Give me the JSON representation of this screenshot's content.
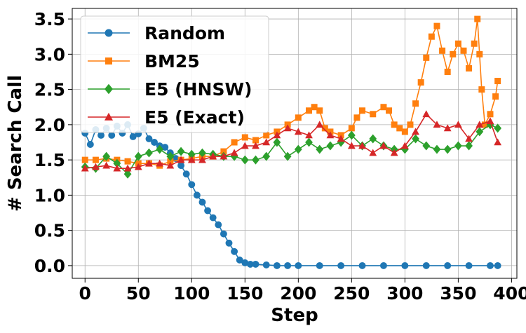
{
  "chart_data": {
    "type": "line",
    "title": "",
    "xlabel": "Step",
    "ylabel": "# Search Call",
    "xlim": [
      -12,
      405
    ],
    "ylim": [
      -0.18,
      3.65
    ],
    "xticks": [
      0,
      50,
      100,
      150,
      200,
      250,
      300,
      350,
      400
    ],
    "yticks": [
      0.0,
      0.5,
      1.0,
      1.5,
      2.0,
      2.5,
      3.0,
      3.5
    ],
    "xtick_labels": [
      "0",
      "50",
      "100",
      "150",
      "200",
      "250",
      "300",
      "350",
      "400"
    ],
    "ytick_labels": [
      "0.0",
      "0.5",
      "1.0",
      "1.5",
      "2.0",
      "2.5",
      "3.0",
      "3.5"
    ],
    "grid": true,
    "legend_position": "top-left",
    "series": [
      {
        "name": "Random",
        "color": "#1f77b4",
        "marker": "circle",
        "points": [
          [
            0,
            1.88
          ],
          [
            5,
            1.72
          ],
          [
            10,
            1.93
          ],
          [
            15,
            1.85
          ],
          [
            20,
            1.95
          ],
          [
            25,
            1.85
          ],
          [
            30,
            1.98
          ],
          [
            35,
            1.88
          ],
          [
            40,
            2.0
          ],
          [
            45,
            1.83
          ],
          [
            50,
            1.87
          ],
          [
            55,
            1.95
          ],
          [
            60,
            1.8
          ],
          [
            65,
            1.75
          ],
          [
            70,
            1.7
          ],
          [
            75,
            1.68
          ],
          [
            80,
            1.6
          ],
          [
            85,
            1.52
          ],
          [
            90,
            1.42
          ],
          [
            95,
            1.3
          ],
          [
            100,
            1.15
          ],
          [
            105,
            1.0
          ],
          [
            110,
            0.9
          ],
          [
            115,
            0.78
          ],
          [
            120,
            0.68
          ],
          [
            125,
            0.58
          ],
          [
            130,
            0.45
          ],
          [
            135,
            0.32
          ],
          [
            140,
            0.2
          ],
          [
            145,
            0.08
          ],
          [
            150,
            0.04
          ],
          [
            155,
            0.02
          ],
          [
            160,
            0.02
          ],
          [
            170,
            0.01
          ],
          [
            180,
            0.0
          ],
          [
            190,
            0.0
          ],
          [
            200,
            0.0
          ],
          [
            220,
            0.0
          ],
          [
            240,
            0.0
          ],
          [
            260,
            0.0
          ],
          [
            280,
            0.0
          ],
          [
            300,
            0.0
          ],
          [
            320,
            0.0
          ],
          [
            340,
            0.0
          ],
          [
            360,
            0.0
          ],
          [
            380,
            0.0
          ],
          [
            387,
            0.0
          ]
        ]
      },
      {
        "name": "BM25",
        "color": "#ff7f0e",
        "marker": "square",
        "points": [
          [
            0,
            1.5
          ],
          [
            10,
            1.5
          ],
          [
            20,
            1.52
          ],
          [
            30,
            1.5
          ],
          [
            40,
            1.48
          ],
          [
            50,
            1.45
          ],
          [
            60,
            1.45
          ],
          [
            70,
            1.42
          ],
          [
            80,
            1.48
          ],
          [
            90,
            1.5
          ],
          [
            100,
            1.52
          ],
          [
            110,
            1.55
          ],
          [
            120,
            1.55
          ],
          [
            130,
            1.62
          ],
          [
            140,
            1.75
          ],
          [
            150,
            1.82
          ],
          [
            160,
            1.78
          ],
          [
            170,
            1.85
          ],
          [
            180,
            1.9
          ],
          [
            190,
            2.0
          ],
          [
            200,
            2.1
          ],
          [
            210,
            2.2
          ],
          [
            215,
            2.25
          ],
          [
            220,
            2.2
          ],
          [
            225,
            1.95
          ],
          [
            230,
            1.9
          ],
          [
            240,
            1.85
          ],
          [
            250,
            1.95
          ],
          [
            255,
            2.1
          ],
          [
            260,
            2.2
          ],
          [
            270,
            2.15
          ],
          [
            280,
            2.25
          ],
          [
            285,
            2.2
          ],
          [
            290,
            2.0
          ],
          [
            295,
            1.95
          ],
          [
            300,
            1.9
          ],
          [
            305,
            2.0
          ],
          [
            310,
            2.3
          ],
          [
            315,
            2.6
          ],
          [
            320,
            2.95
          ],
          [
            325,
            3.25
          ],
          [
            330,
            3.4
          ],
          [
            335,
            3.05
          ],
          [
            340,
            2.75
          ],
          [
            345,
            3.0
          ],
          [
            350,
            3.15
          ],
          [
            355,
            3.05
          ],
          [
            360,
            2.8
          ],
          [
            365,
            3.15
          ],
          [
            368,
            3.5
          ],
          [
            370,
            3.0
          ],
          [
            372,
            2.5
          ],
          [
            375,
            2.0
          ],
          [
            380,
            2.15
          ],
          [
            385,
            2.4
          ],
          [
            387,
            2.62
          ]
        ]
      },
      {
        "name": "E5 (HNSW)",
        "color": "#2ca02c",
        "marker": "diamond",
        "points": [
          [
            0,
            1.4
          ],
          [
            10,
            1.38
          ],
          [
            20,
            1.55
          ],
          [
            30,
            1.45
          ],
          [
            40,
            1.3
          ],
          [
            50,
            1.55
          ],
          [
            60,
            1.6
          ],
          [
            70,
            1.65
          ],
          [
            80,
            1.55
          ],
          [
            90,
            1.62
          ],
          [
            100,
            1.58
          ],
          [
            110,
            1.6
          ],
          [
            120,
            1.58
          ],
          [
            130,
            1.55
          ],
          [
            140,
            1.55
          ],
          [
            150,
            1.5
          ],
          [
            160,
            1.5
          ],
          [
            170,
            1.55
          ],
          [
            180,
            1.75
          ],
          [
            190,
            1.55
          ],
          [
            200,
            1.65
          ],
          [
            210,
            1.75
          ],
          [
            220,
            1.65
          ],
          [
            230,
            1.7
          ],
          [
            240,
            1.75
          ],
          [
            250,
            1.85
          ],
          [
            260,
            1.7
          ],
          [
            270,
            1.8
          ],
          [
            280,
            1.7
          ],
          [
            290,
            1.65
          ],
          [
            300,
            1.65
          ],
          [
            310,
            1.8
          ],
          [
            320,
            1.7
          ],
          [
            330,
            1.65
          ],
          [
            340,
            1.65
          ],
          [
            350,
            1.7
          ],
          [
            360,
            1.7
          ],
          [
            370,
            1.9
          ],
          [
            380,
            2.0
          ],
          [
            387,
            1.95
          ]
        ]
      },
      {
        "name": "E5 (Exact)",
        "color": "#d62728",
        "marker": "triangle",
        "points": [
          [
            0,
            1.38
          ],
          [
            10,
            1.4
          ],
          [
            20,
            1.42
          ],
          [
            30,
            1.38
          ],
          [
            40,
            1.38
          ],
          [
            50,
            1.4
          ],
          [
            60,
            1.45
          ],
          [
            70,
            1.45
          ],
          [
            80,
            1.42
          ],
          [
            90,
            1.5
          ],
          [
            100,
            1.5
          ],
          [
            110,
            1.5
          ],
          [
            120,
            1.55
          ],
          [
            130,
            1.55
          ],
          [
            140,
            1.6
          ],
          [
            150,
            1.7
          ],
          [
            160,
            1.7
          ],
          [
            170,
            1.75
          ],
          [
            180,
            1.85
          ],
          [
            190,
            1.95
          ],
          [
            200,
            1.9
          ],
          [
            210,
            1.85
          ],
          [
            220,
            2.0
          ],
          [
            230,
            1.85
          ],
          [
            240,
            1.8
          ],
          [
            250,
            1.7
          ],
          [
            260,
            1.7
          ],
          [
            270,
            1.6
          ],
          [
            280,
            1.7
          ],
          [
            290,
            1.6
          ],
          [
            300,
            1.7
          ],
          [
            310,
            1.9
          ],
          [
            320,
            2.15
          ],
          [
            330,
            2.0
          ],
          [
            340,
            1.95
          ],
          [
            350,
            2.0
          ],
          [
            360,
            1.8
          ],
          [
            370,
            2.0
          ],
          [
            380,
            2.05
          ],
          [
            387,
            1.75
          ]
        ]
      }
    ]
  }
}
